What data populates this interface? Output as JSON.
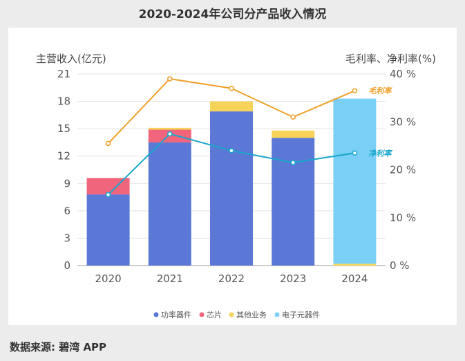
{
  "page": {
    "title": "2020-2024年公司分产品收入情况",
    "source": "数据来源: 碧湾 APP"
  },
  "chart_data": {
    "type": "bar",
    "stacked": true,
    "categories": [
      "2020",
      "2021",
      "2022",
      "2023",
      "2024"
    ],
    "y_left": {
      "label": "主营收入(亿元)",
      "ylim": [
        0,
        21
      ],
      "ticks": [
        0,
        3,
        6,
        9,
        12,
        15,
        18,
        21
      ]
    },
    "y_right": {
      "label": "毛利率、净利率(%)",
      "ylim": [
        0,
        40
      ],
      "ticks": [
        0,
        10,
        20,
        30,
        40
      ],
      "unit": " %"
    },
    "series": [
      {
        "name": "功率器件",
        "type": "bar",
        "color": "#5b78d6",
        "values": [
          7.8,
          13.5,
          16.9,
          14.0,
          0
        ]
      },
      {
        "name": "芯片",
        "type": "bar",
        "color": "#f0657c",
        "values": [
          1.8,
          1.4,
          0,
          0,
          0
        ]
      },
      {
        "name": "其他业务",
        "type": "bar",
        "color": "#f7d459",
        "values": [
          0,
          0.2,
          1.1,
          0.8,
          0.2
        ]
      },
      {
        "name": "电子元器件",
        "type": "bar",
        "color": "#79cff5",
        "values": [
          0,
          0,
          0,
          0,
          18.1
        ]
      }
    ],
    "lines": [
      {
        "name": "毛利率",
        "type": "line",
        "axis": "right",
        "color": "#f0a02a",
        "values": [
          25.5,
          39.0,
          37.0,
          31.0,
          36.5
        ]
      },
      {
        "name": "净利率",
        "type": "line",
        "axis": "right",
        "color": "#1aa7cc",
        "values": [
          14.8,
          27.5,
          24.0,
          21.5,
          23.5
        ]
      }
    ],
    "legend_position": "bottom",
    "grid": true
  }
}
